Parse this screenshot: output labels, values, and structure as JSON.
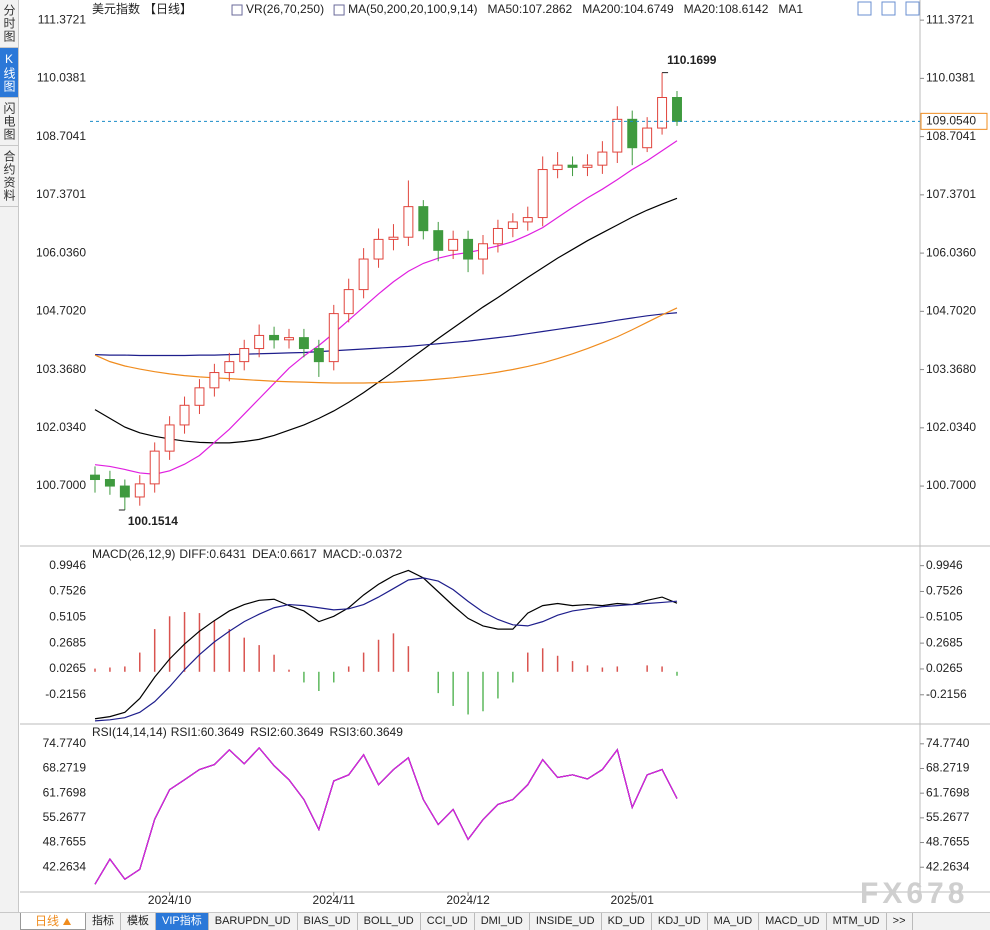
{
  "chart_data": [
    {
      "type": "candlestick",
      "title": "美元指数",
      "period": "【日线】",
      "indicators": [
        "VR(26,70,250)",
        "MA(50,200,20,100,9,14)"
      ],
      "open": [
        100.95,
        100.85,
        100.7,
        100.45,
        100.75,
        101.5,
        102.1,
        102.55,
        102.95,
        103.3,
        103.55,
        103.85,
        104.15,
        104.05,
        104.1,
        103.85,
        103.55,
        104.65,
        105.2,
        105.9,
        106.35,
        106.4,
        107.1,
        106.55,
        106.1,
        106.35,
        105.9,
        106.25,
        106.6,
        106.75,
        106.85,
        107.95,
        108.05,
        108.0,
        108.05,
        108.35,
        109.1,
        108.45,
        108.9,
        109.6
      ],
      "high": [
        101.15,
        101.05,
        100.85,
        100.95,
        101.7,
        102.3,
        102.75,
        103.15,
        103.5,
        103.75,
        104.05,
        104.4,
        104.35,
        104.3,
        104.3,
        104.05,
        104.85,
        105.45,
        106.15,
        106.6,
        106.7,
        107.7,
        107.25,
        106.75,
        106.55,
        106.55,
        106.45,
        106.8,
        106.95,
        107.1,
        108.25,
        108.35,
        108.25,
        108.3,
        108.6,
        109.4,
        109.3,
        109.15,
        110.1699,
        109.75
      ],
      "low": [
        100.55,
        100.5,
        100.1514,
        100.25,
        100.55,
        101.3,
        101.9,
        102.35,
        102.75,
        103.1,
        103.35,
        103.65,
        103.85,
        103.85,
        103.65,
        103.2,
        103.35,
        104.45,
        105.0,
        105.7,
        106.1,
        106.2,
        106.35,
        105.85,
        105.9,
        105.6,
        105.55,
        106.05,
        106.4,
        106.55,
        106.65,
        107.75,
        107.8,
        107.8,
        107.85,
        108.1,
        108.05,
        108.35,
        108.75,
        108.95
      ],
      "close": [
        100.85,
        100.7,
        100.45,
        100.75,
        101.5,
        102.1,
        102.55,
        102.95,
        103.3,
        103.55,
        103.85,
        104.15,
        104.05,
        104.1,
        103.85,
        103.55,
        104.65,
        105.2,
        105.9,
        106.35,
        106.4,
        107.1,
        106.55,
        106.1,
        106.35,
        105.9,
        106.25,
        106.6,
        106.75,
        106.85,
        107.95,
        108.05,
        108.0,
        108.05,
        108.35,
        109.1,
        108.45,
        108.9,
        109.6,
        109.054
      ],
      "up_color": "#e0443c",
      "down_color": "#3f9a3f",
      "series": [
        {
          "name": "MA50:107.2862",
          "color": "#000000",
          "values": [
            102.45,
            102.25,
            102.05,
            101.92,
            101.84,
            101.78,
            101.73,
            101.7,
            101.69,
            101.69,
            101.72,
            101.77,
            101.86,
            101.98,
            102.1,
            102.25,
            102.42,
            102.62,
            102.84,
            103.08,
            103.32,
            103.58,
            103.83,
            104.08,
            104.32,
            104.56,
            104.8,
            105.02,
            105.25,
            105.48,
            105.7,
            105.92,
            106.12,
            106.32,
            106.5,
            106.68,
            106.86,
            107.02,
            107.16,
            107.29
          ]
        },
        {
          "name": "MA200:104.6749",
          "color": "#1e1e8c",
          "values": [
            103.71,
            103.7,
            103.7,
            103.69,
            103.69,
            103.69,
            103.69,
            103.7,
            103.7,
            103.71,
            103.72,
            103.73,
            103.74,
            103.75,
            103.76,
            103.78,
            103.8,
            103.82,
            103.84,
            103.86,
            103.88,
            103.9,
            103.93,
            103.96,
            103.99,
            104.02,
            104.06,
            104.1,
            104.14,
            104.19,
            104.24,
            104.29,
            104.34,
            104.39,
            104.44,
            104.5,
            104.55,
            104.6,
            104.64,
            104.67
          ]
        },
        {
          "name": "MA20:108.6142",
          "color": "#e020e0",
          "values": [
            101.19,
            101.15,
            101.08,
            101.0,
            100.97,
            101.05,
            101.2,
            101.4,
            101.7,
            102.0,
            102.35,
            102.7,
            103.05,
            103.4,
            103.68,
            103.92,
            104.2,
            104.5,
            104.8,
            105.1,
            105.38,
            105.62,
            105.8,
            105.92,
            106.0,
            106.05,
            106.12,
            106.2,
            106.3,
            106.45,
            106.62,
            106.85,
            107.08,
            107.3,
            107.5,
            107.72,
            107.95,
            108.15,
            108.38,
            108.61
          ]
        },
        {
          "name": "MA1",
          "color": "#f08c1e",
          "values": [
            103.7,
            103.55,
            103.45,
            103.38,
            103.32,
            103.27,
            103.23,
            103.2,
            103.18,
            103.16,
            103.14,
            103.12,
            103.1,
            103.09,
            103.08,
            103.07,
            103.06,
            103.06,
            103.06,
            103.07,
            103.08,
            103.1,
            103.12,
            103.15,
            103.18,
            103.22,
            103.26,
            103.31,
            103.37,
            103.44,
            103.52,
            103.62,
            103.73,
            103.85,
            103.98,
            104.12,
            104.28,
            104.45,
            104.62,
            104.78
          ]
        }
      ],
      "last_price": {
        "value": 109.054,
        "label": "109.0540"
      },
      "ylim": [
        99.35,
        111.65
      ],
      "yticks": [
        111.3721,
        110.0381,
        108.7041,
        107.3701,
        {
          "value": 106.036,
          "label": "106.0360"
        },
        {
          "value": 104.702,
          "label": "104.7020"
        },
        {
          "value": 103.368,
          "label": "103.3680"
        },
        {
          "value": 102.034,
          "label": "102.0340"
        },
        {
          "value": 100.7,
          "label": "100.7000"
        }
      ],
      "grid": false
    },
    {
      "type": "macd",
      "title": "MACD(26,12,9)",
      "series": [
        {
          "name": "DIFF:0.6431",
          "color": "#000000",
          "values": [
            -0.44,
            -0.42,
            -0.38,
            -0.25,
            -0.05,
            0.12,
            0.26,
            0.38,
            0.48,
            0.57,
            0.63,
            0.67,
            0.68,
            0.62,
            0.57,
            0.47,
            0.52,
            0.6,
            0.72,
            0.82,
            0.9,
            0.95,
            0.88,
            0.75,
            0.62,
            0.5,
            0.43,
            0.4,
            0.4,
            0.55,
            0.62,
            0.64,
            0.62,
            0.63,
            0.62,
            0.64,
            0.63,
            0.67,
            0.7,
            0.6431
          ]
        },
        {
          "name": "DEA:0.6617",
          "color": "#1e1e8c",
          "values": [
            -0.46,
            -0.45,
            -0.43,
            -0.38,
            -0.28,
            -0.14,
            0.02,
            0.16,
            0.28,
            0.38,
            0.47,
            0.54,
            0.6,
            0.63,
            0.62,
            0.6,
            0.58,
            0.59,
            0.63,
            0.7,
            0.78,
            0.86,
            0.88,
            0.85,
            0.77,
            0.66,
            0.56,
            0.49,
            0.44,
            0.43,
            0.47,
            0.53,
            0.57,
            0.59,
            0.61,
            0.62,
            0.63,
            0.64,
            0.65,
            0.6617
          ]
        }
      ],
      "histogram": {
        "name": "MACD:-0.0372",
        "color": "#e020e0",
        "up_color": "#d9534f",
        "down_color": "#5cb85c",
        "values": [
          0.03,
          0.04,
          0.05,
          0.18,
          0.4,
          0.52,
          0.56,
          0.55,
          0.48,
          0.4,
          0.32,
          0.25,
          0.16,
          0.02,
          -0.1,
          -0.18,
          -0.1,
          0.05,
          0.18,
          0.3,
          0.36,
          0.24,
          0.0,
          -0.2,
          -0.32,
          -0.4,
          -0.37,
          -0.25,
          -0.1,
          0.18,
          0.22,
          0.15,
          0.1,
          0.06,
          0.04,
          0.05,
          0.0,
          0.06,
          0.05,
          -0.0372
        ]
      },
      "ylim": [
        -0.48,
        1.16
      ],
      "yticks": [
        0.9946,
        0.7526,
        0.5105,
        0.2685,
        0.0265,
        -0.2156
      ],
      "grid": false
    },
    {
      "type": "line",
      "title": "RSI(14,14,14)",
      "categories": [
        null,
        null,
        null,
        null,
        null,
        "2024/10",
        null,
        null,
        null,
        null,
        null,
        null,
        null,
        null,
        null,
        null,
        "2024/11",
        null,
        null,
        null,
        null,
        null,
        null,
        null,
        null,
        "2024/12",
        null,
        null,
        null,
        null,
        null,
        null,
        null,
        null,
        null,
        null,
        "2025/01",
        null,
        null,
        null
      ],
      "series": [
        {
          "name": "RSI1:60.3649",
          "color": "#000000",
          "values": [
            37.8,
            44.4,
            39.1,
            41.7,
            54.9,
            62.7,
            65.3,
            68.0,
            69.3,
            73.2,
            69.5,
            73.7,
            69.0,
            65.3,
            60.1,
            52.2,
            65.0,
            66.6,
            71.9,
            64.0,
            68.0,
            71.1,
            60.1,
            53.5,
            57.5,
            49.6,
            54.8,
            58.8,
            60.1,
            64.0,
            70.6,
            65.9,
            66.6,
            65.5,
            68.0,
            73.2,
            58.0,
            66.6,
            68.0,
            60.3649
          ]
        },
        {
          "name": "RSI2:60.3649",
          "color": "#1e1e8c",
          "values": [
            37.8,
            44.4,
            39.1,
            41.7,
            54.9,
            62.7,
            65.3,
            68.0,
            69.3,
            73.2,
            69.5,
            73.7,
            69.0,
            65.3,
            60.1,
            52.2,
            65.0,
            66.6,
            71.9,
            64.0,
            68.0,
            71.1,
            60.1,
            53.5,
            57.5,
            49.6,
            54.8,
            58.8,
            60.1,
            64.0,
            70.6,
            65.9,
            66.6,
            65.5,
            68.0,
            73.2,
            58.0,
            66.6,
            68.0,
            60.3649
          ]
        },
        {
          "name": "RSI3:60.3649",
          "color": "#e020e0",
          "values": [
            37.8,
            44.4,
            39.1,
            41.7,
            54.9,
            62.7,
            65.3,
            68.0,
            69.3,
            73.2,
            69.5,
            73.7,
            69.0,
            65.3,
            60.1,
            52.2,
            65.0,
            66.6,
            71.9,
            64.0,
            68.0,
            71.1,
            60.1,
            53.5,
            57.5,
            49.6,
            54.8,
            58.8,
            60.1,
            64.0,
            70.6,
            65.9,
            66.6,
            65.5,
            68.0,
            73.2,
            58.0,
            66.6,
            68.0,
            60.3649
          ]
        }
      ],
      "ylim": [
        36,
        79.2
      ],
      "yticks": [
        {
          "value": 74.774,
          "label": "74.7740"
        },
        68.2719,
        61.7698,
        55.2677,
        48.7655,
        42.2634
      ],
      "grid": false
    }
  ],
  "ui": {
    "side_tabs": [
      "分时图",
      "K线图",
      "闪电图",
      "合约资料"
    ],
    "active_side_tab": 1,
    "period_button": "日线",
    "bottom_tabs": [
      "指标",
      "模板",
      "VIP指标",
      "BARUPDN_UD",
      "BIAS_UD",
      "BOLL_UD",
      "CCI_UD",
      "DMI_UD",
      "INSIDE_UD",
      "KD_UD",
      "KDJ_UD",
      "MA_UD",
      "MACD_UD",
      "MTM_UD",
      ">>"
    ],
    "active_bottom_tab": 2,
    "watermark": "FX678"
  }
}
